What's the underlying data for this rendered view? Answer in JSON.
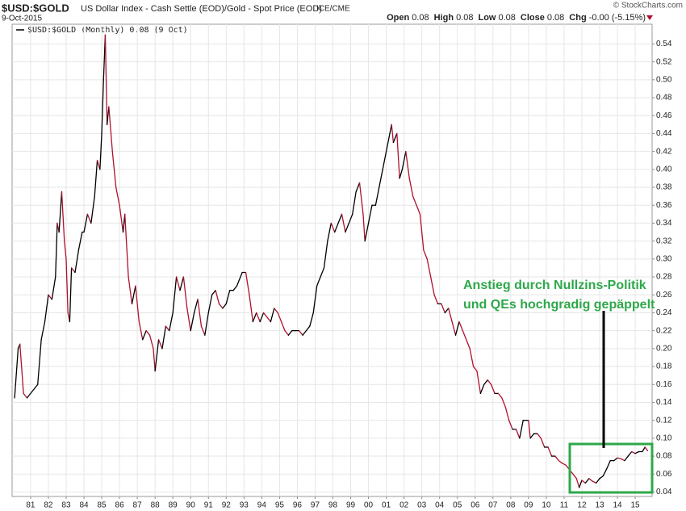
{
  "chart_data": {
    "type": "line",
    "title": "$USD:$GOLD",
    "subtitle": "US Dollar Index - Cash Settle (EOD)/Gold - Spot Price (EOD)",
    "exchange": "ICE/CME",
    "date": "9-Oct-2015",
    "source": "© StockCharts.com",
    "quote": [
      {
        "label": "Open",
        "value": 0.08
      },
      {
        "label": "High",
        "value": 0.08
      },
      {
        "label": "Low",
        "value": 0.08
      },
      {
        "label": "Close",
        "value": 0.08
      },
      {
        "label": "Chg",
        "value": "-0.00 (-5.15%)"
      }
    ],
    "annotation": [
      "Anstieg durch Nullzins-Politik",
      "und QEs hochgradig gepäppelt"
    ],
    "up_color": "#000000",
    "down_color": "#b0102e",
    "annotation_color": "#2ea84a",
    "grid": true,
    "xlim": [
      1979.96,
      2015.95
    ],
    "ylim": [
      0.035,
      0.562
    ],
    "xticks": [
      {
        "value": 1981,
        "label": "81"
      },
      {
        "value": 1982,
        "label": "82"
      },
      {
        "value": 1983,
        "label": "83"
      },
      {
        "value": 1984,
        "label": "84"
      },
      {
        "value": 1985,
        "label": "85"
      },
      {
        "value": 1986,
        "label": "86"
      },
      {
        "value": 1987,
        "label": "87"
      },
      {
        "value": 1988,
        "label": "88"
      },
      {
        "value": 1989,
        "label": "89"
      },
      {
        "value": 1990,
        "label": "90"
      },
      {
        "value": 1991,
        "label": "91"
      },
      {
        "value": 1992,
        "label": "92"
      },
      {
        "value": 1993,
        "label": "93"
      },
      {
        "value": 1994,
        "label": "94"
      },
      {
        "value": 1995,
        "label": "95"
      },
      {
        "value": 1996,
        "label": "96"
      },
      {
        "value": 1997,
        "label": "97"
      },
      {
        "value": 1998,
        "label": "98"
      },
      {
        "value": 1999,
        "label": "99"
      },
      {
        "value": 2000,
        "label": "00"
      },
      {
        "value": 2001,
        "label": "01"
      },
      {
        "value": 2002,
        "label": "02"
      },
      {
        "value": 2003,
        "label": "03"
      },
      {
        "value": 2004,
        "label": "04"
      },
      {
        "value": 2005,
        "label": "05"
      },
      {
        "value": 2006,
        "label": "06"
      },
      {
        "value": 2007,
        "label": "07"
      },
      {
        "value": 2008,
        "label": "08"
      },
      {
        "value": 2009,
        "label": "09"
      },
      {
        "value": 2010,
        "label": "10"
      },
      {
        "value": 2011,
        "label": "11"
      },
      {
        "value": 2012,
        "label": "12"
      },
      {
        "value": 2013,
        "label": "13"
      },
      {
        "value": 2014,
        "label": "14"
      },
      {
        "value": 2015,
        "label": "15"
      }
    ],
    "yticks": [
      0.04,
      0.06,
      0.08,
      {
        "value": 0.1,
        "label": "0.10"
      },
      0.12,
      0.14,
      0.16,
      0.18,
      {
        "value": 0.2,
        "label": "0.20"
      },
      0.22,
      0.24,
      0.26,
      0.28,
      {
        "value": 0.3,
        "label": "0.30"
      },
      0.32,
      0.34,
      0.36,
      0.38,
      {
        "value": 0.4,
        "label": "0.40"
      },
      0.42,
      0.44,
      0.46,
      0.48,
      {
        "value": 0.5,
        "label": "0.50"
      },
      0.52,
      0.54
    ],
    "series": [
      {
        "name": "$USD:$GOLD (Monthly) 0.08 (9 Oct)",
        "x": [
          1980.1,
          1980.3,
          1980.4,
          1980.6,
          1980.8,
          1981.4,
          1981.6,
          1981.8,
          1982.0,
          1982.2,
          1982.4,
          1982.5,
          1982.6,
          1982.75,
          1982.9,
          1983.0,
          1983.1,
          1983.2,
          1983.3,
          1983.5,
          1983.7,
          1983.9,
          1984.0,
          1984.2,
          1984.4,
          1984.6,
          1984.75,
          1984.9,
          1985.0,
          1985.1,
          1985.2,
          1985.3,
          1985.4,
          1985.6,
          1985.8,
          1986.0,
          1986.2,
          1986.3,
          1986.5,
          1986.7,
          1986.9,
          1987.1,
          1987.3,
          1987.5,
          1987.7,
          1987.9,
          1988.0,
          1988.2,
          1988.4,
          1988.6,
          1988.8,
          1989.0,
          1989.2,
          1989.4,
          1989.6,
          1989.8,
          1990.0,
          1990.2,
          1990.4,
          1990.6,
          1990.8,
          1991.0,
          1991.2,
          1991.4,
          1991.6,
          1991.8,
          1992.0,
          1992.2,
          1992.4,
          1992.6,
          1992.9,
          1993.1,
          1993.3,
          1993.5,
          1993.7,
          1993.9,
          1994.1,
          1994.3,
          1994.5,
          1994.7,
          1994.9,
          1995.1,
          1995.3,
          1995.5,
          1995.7,
          1995.9,
          1996.1,
          1996.3,
          1996.5,
          1996.7,
          1996.9,
          1997.1,
          1997.3,
          1997.5,
          1997.7,
          1997.9,
          1998.1,
          1998.3,
          1998.5,
          1998.7,
          1998.9,
          1999.1,
          1999.3,
          1999.5,
          1999.7,
          1999.8,
          2000.0,
          2000.2,
          2000.4,
          2000.6,
          2000.8,
          2001.0,
          2001.2,
          2001.3,
          2001.4,
          2001.6,
          2001.75,
          2001.9,
          2002.1,
          2002.3,
          2002.5,
          2002.7,
          2002.9,
          2003.1,
          2003.3,
          2003.5,
          2003.7,
          2003.9,
          2004.1,
          2004.3,
          2004.5,
          2004.7,
          2004.9,
          2005.1,
          2005.3,
          2005.5,
          2005.7,
          2005.9,
          2006.1,
          2006.3,
          2006.5,
          2006.7,
          2006.9,
          2007.1,
          2007.3,
          2007.5,
          2007.7,
          2007.9,
          2008.1,
          2008.3,
          2008.5,
          2008.7,
          2008.9,
          2009.0,
          2009.1,
          2009.3,
          2009.5,
          2009.7,
          2009.9,
          2010.1,
          2010.3,
          2010.5,
          2010.7,
          2010.9,
          2011.1,
          2011.3,
          2011.5,
          2011.7,
          2011.85,
          2012.0,
          2012.2,
          2012.4,
          2012.6,
          2012.8,
          2013.0,
          2013.2,
          2013.4,
          2013.6,
          2013.8,
          2014.0,
          2014.2,
          2014.4,
          2014.6,
          2014.8,
          2015.0,
          2015.2,
          2015.4,
          2015.55,
          2015.7
        ],
        "values": [
          0.145,
          0.2,
          0.205,
          0.15,
          0.145,
          0.16,
          0.21,
          0.23,
          0.26,
          0.255,
          0.28,
          0.34,
          0.33,
          0.375,
          0.32,
          0.3,
          0.24,
          0.23,
          0.29,
          0.285,
          0.31,
          0.33,
          0.33,
          0.35,
          0.34,
          0.37,
          0.41,
          0.4,
          0.44,
          0.5,
          0.55,
          0.45,
          0.47,
          0.42,
          0.38,
          0.36,
          0.33,
          0.35,
          0.28,
          0.25,
          0.27,
          0.23,
          0.21,
          0.22,
          0.215,
          0.2,
          0.175,
          0.21,
          0.2,
          0.225,
          0.22,
          0.24,
          0.28,
          0.265,
          0.28,
          0.245,
          0.22,
          0.24,
          0.255,
          0.225,
          0.215,
          0.24,
          0.26,
          0.265,
          0.25,
          0.245,
          0.25,
          0.265,
          0.265,
          0.27,
          0.285,
          0.285,
          0.26,
          0.23,
          0.24,
          0.23,
          0.24,
          0.235,
          0.23,
          0.245,
          0.24,
          0.23,
          0.22,
          0.215,
          0.22,
          0.22,
          0.22,
          0.215,
          0.22,
          0.225,
          0.24,
          0.27,
          0.28,
          0.29,
          0.32,
          0.34,
          0.33,
          0.34,
          0.35,
          0.33,
          0.34,
          0.35,
          0.375,
          0.385,
          0.35,
          0.32,
          0.34,
          0.36,
          0.36,
          0.38,
          0.4,
          0.42,
          0.44,
          0.45,
          0.43,
          0.44,
          0.39,
          0.4,
          0.42,
          0.39,
          0.37,
          0.36,
          0.35,
          0.31,
          0.3,
          0.28,
          0.26,
          0.25,
          0.25,
          0.24,
          0.245,
          0.23,
          0.215,
          0.23,
          0.22,
          0.21,
          0.2,
          0.18,
          0.175,
          0.15,
          0.16,
          0.165,
          0.16,
          0.15,
          0.15,
          0.145,
          0.135,
          0.12,
          0.11,
          0.11,
          0.1,
          0.12,
          0.12,
          0.12,
          0.1,
          0.105,
          0.105,
          0.1,
          0.09,
          0.09,
          0.08,
          0.08,
          0.075,
          0.072,
          0.07,
          0.065,
          0.06,
          0.055,
          0.045,
          0.053,
          0.05,
          0.055,
          0.052,
          0.05,
          0.055,
          0.058,
          0.066,
          0.075,
          0.075,
          0.078,
          0.077,
          0.075,
          0.08,
          0.085,
          0.083,
          0.085,
          0.085,
          0.09,
          0.086
        ]
      }
    ]
  }
}
